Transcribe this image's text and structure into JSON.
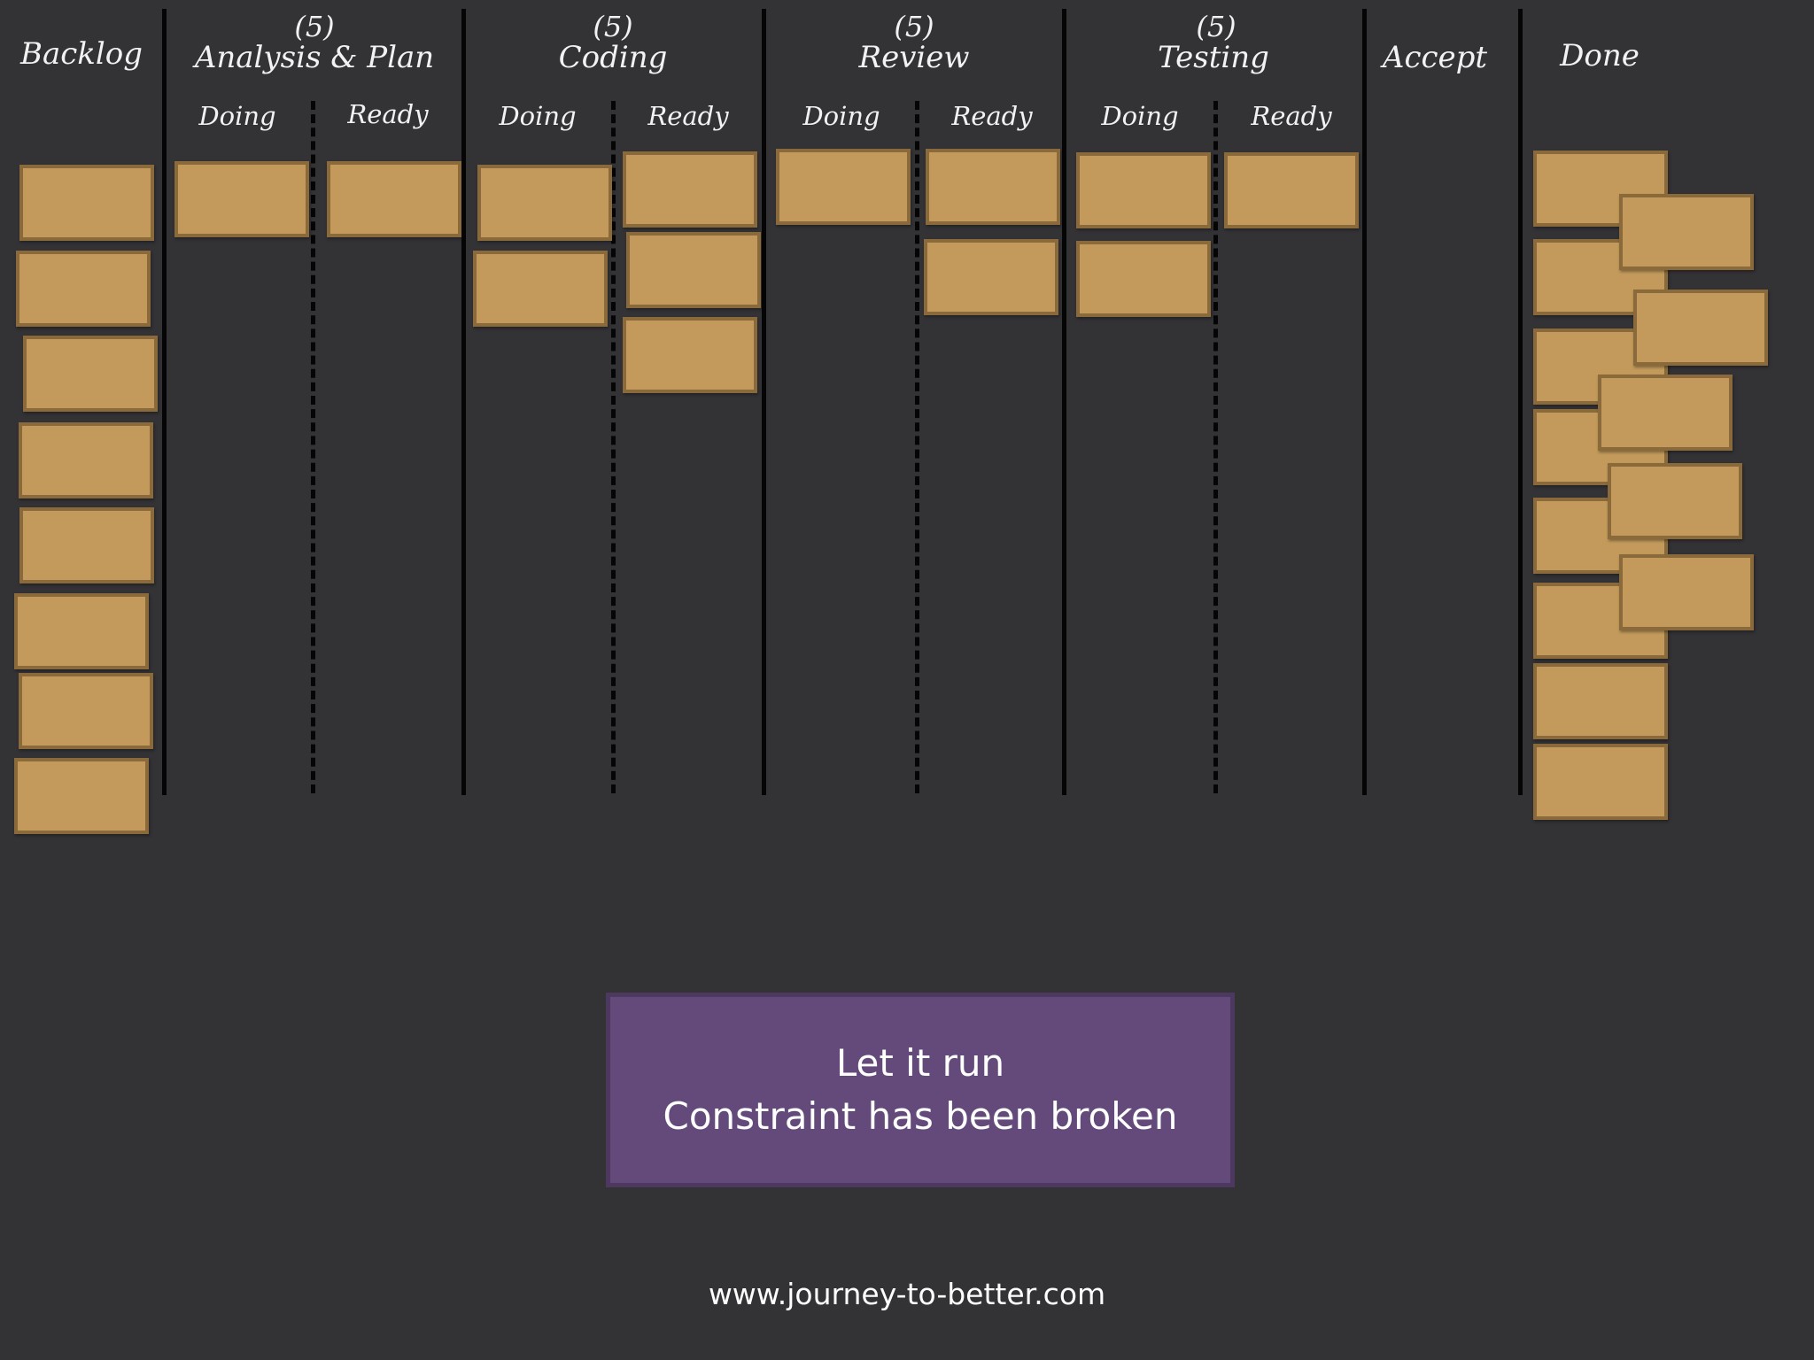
{
  "columns": {
    "backlog": {
      "title": "Backlog"
    },
    "analysis": {
      "wip": "(5)",
      "title": "Analysis & Plan",
      "doing": "Doing",
      "ready": "Ready"
    },
    "coding": {
      "wip": "(5)",
      "title": "Coding",
      "doing": "Doing",
      "ready": "Ready"
    },
    "review": {
      "wip": "(5)",
      "title": "Review",
      "doing": "Doing",
      "ready": "Ready"
    },
    "testing": {
      "wip": "(5)",
      "title": "Testing",
      "doing": "Doing",
      "ready": "Ready"
    },
    "accept": {
      "title": "Accept"
    },
    "done": {
      "title": "Done"
    }
  },
  "card_counts": {
    "backlog": 8,
    "analysis_doing": 1,
    "analysis_ready": 1,
    "coding_doing": 2,
    "coding_ready": 3,
    "review_doing": 1,
    "review_ready": 2,
    "testing_doing": 2,
    "testing_ready": 1,
    "accept": 0,
    "done": 14
  },
  "colors": {
    "background": "#333235",
    "card_fill": "#c39a5b",
    "card_border": "#8a6a3a",
    "message_fill": "#634a7b"
  },
  "message": {
    "line1": "Let it run",
    "line2": "Constraint has been broken"
  },
  "footer": {
    "url": "www.journey-to-better.com"
  }
}
